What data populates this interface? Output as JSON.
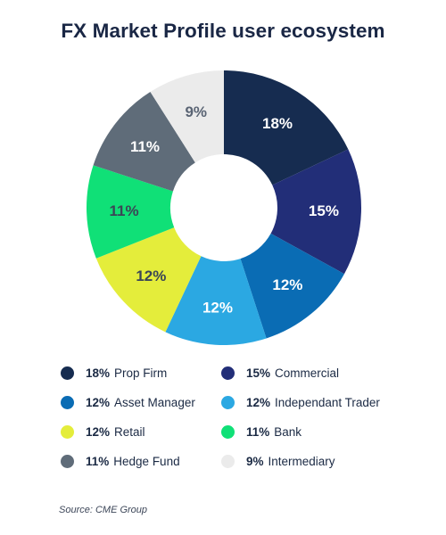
{
  "title": "FX Market Profile user ecosystem",
  "source": "Source: CME Group",
  "chart_data": {
    "type": "pie",
    "title": "FX Market Profile user ecosystem",
    "legend_position": "bottom",
    "slices": [
      {
        "name": "Prop Firm",
        "value": 18,
        "label": "18%",
        "color": "#162c50",
        "label_color": "#ffffff"
      },
      {
        "name": "Commercial",
        "value": 15,
        "label": "15%",
        "color": "#222e78",
        "label_color": "#ffffff"
      },
      {
        "name": "Asset Manager",
        "value": 12,
        "label": "12%",
        "color": "#0a6cb4",
        "label_color": "#ffffff"
      },
      {
        "name": "Independant Trader",
        "value": 12,
        "label": "12%",
        "color": "#2ba8e2",
        "label_color": "#ffffff"
      },
      {
        "name": "Retail",
        "value": 12,
        "label": "12%",
        "color": "#e4ed3b",
        "label_color": "#3b4656"
      },
      {
        "name": "Bank",
        "value": 11,
        "label": "11%",
        "color": "#10e077",
        "label_color": "#3b4656"
      },
      {
        "name": "Hedge Fund",
        "value": 11,
        "label": "11%",
        "color": "#5f6c79",
        "label_color": "#ffffff"
      },
      {
        "name": "Intermediary",
        "value": 9,
        "label": "9%",
        "color": "#ebebeb",
        "label_color": "#5a6474"
      }
    ]
  }
}
